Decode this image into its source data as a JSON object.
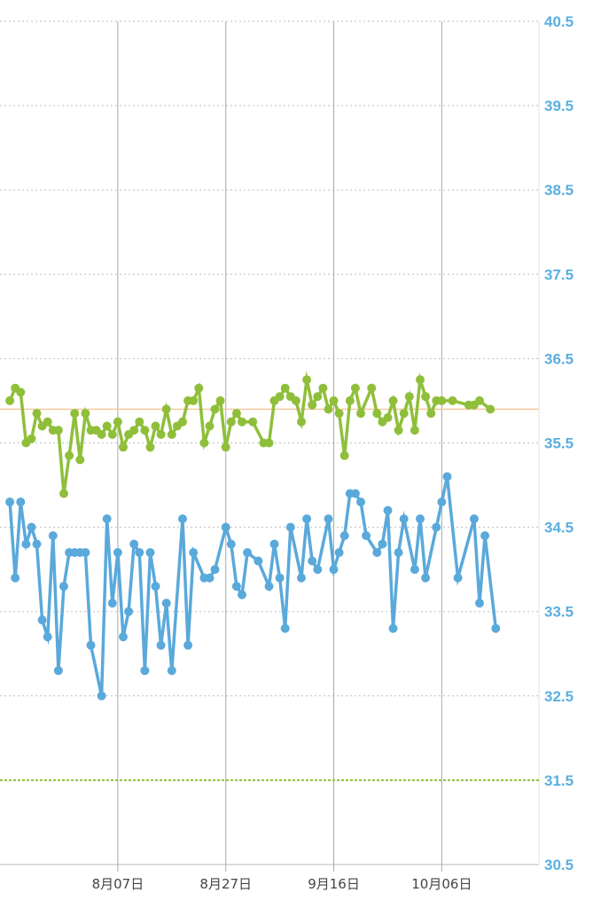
{
  "chart_data": {
    "type": "line",
    "title": "",
    "xlabel": "",
    "ylabel": "",
    "y_axis_position": "right",
    "ylim": [
      30.5,
      40.5
    ],
    "yticks": [
      "40.5",
      "39.5",
      "38.5",
      "37.5",
      "36.5",
      "35.5",
      "34.5",
      "33.5",
      "32.5",
      "31.5",
      "30.5"
    ],
    "xlim": [
      -21,
      78
    ],
    "xticks": [
      {
        "x": 0,
        "label": "8月07日"
      },
      {
        "x": 20,
        "label": "8月27日"
      },
      {
        "x": 40,
        "label": "9月16日"
      },
      {
        "x": 60,
        "label": "10月06日"
      }
    ],
    "grid": {
      "horizontal": "dotted",
      "vertical": "solid"
    },
    "reference_lines": [
      {
        "value": 35.9,
        "color": "#f2c9a0",
        "style": "solid"
      },
      {
        "value": 31.5,
        "color": "#8fbf3a",
        "style": "dashed"
      }
    ],
    "series": [
      {
        "color": "#8fbf3a",
        "points": [
          [
            -20,
            36.0
          ],
          [
            -19,
            36.15
          ],
          [
            -18,
            36.1
          ],
          [
            -17,
            35.5
          ],
          [
            -16,
            35.55
          ],
          [
            -15,
            35.85
          ],
          [
            -14,
            35.7
          ],
          [
            -13,
            35.75
          ],
          [
            -12,
            35.65
          ],
          [
            -11,
            35.65
          ],
          [
            -10,
            34.9
          ],
          [
            -9,
            35.35
          ],
          [
            -8,
            35.85
          ],
          [
            -7,
            35.3
          ],
          [
            -6,
            35.85
          ],
          [
            -5,
            35.65
          ],
          [
            -4,
            35.65
          ],
          [
            -3,
            35.6
          ],
          [
            -2,
            35.7
          ],
          [
            -1,
            35.6
          ],
          [
            0,
            35.75
          ],
          [
            1,
            35.45
          ],
          [
            2,
            35.6
          ],
          [
            3,
            35.65
          ],
          [
            4,
            35.75
          ],
          [
            5,
            35.65
          ],
          [
            6,
            35.45
          ],
          [
            7,
            35.7
          ],
          [
            8,
            35.6
          ],
          [
            9,
            35.9
          ],
          [
            10,
            35.6
          ],
          [
            11,
            35.7
          ],
          [
            12,
            35.75
          ],
          [
            13,
            36.0
          ],
          [
            14,
            36.0
          ],
          [
            15,
            36.15
          ],
          [
            16,
            35.5
          ],
          [
            17,
            35.7
          ],
          [
            18,
            35.9
          ],
          [
            19,
            36.0
          ],
          [
            20,
            35.45
          ],
          [
            21,
            35.75
          ],
          [
            22,
            35.85
          ],
          [
            23,
            35.75
          ],
          [
            25,
            35.75
          ],
          [
            27,
            35.5
          ],
          [
            28,
            35.5
          ],
          [
            29,
            36.0
          ],
          [
            30,
            36.05
          ],
          [
            31,
            36.15
          ],
          [
            32,
            36.05
          ],
          [
            33,
            36.0
          ],
          [
            34,
            35.75
          ],
          [
            35,
            36.25
          ],
          [
            36,
            35.95
          ],
          [
            37,
            36.05
          ],
          [
            38,
            36.15
          ],
          [
            39,
            35.9
          ],
          [
            40,
            36.0
          ],
          [
            41,
            35.85
          ],
          [
            42,
            35.35
          ],
          [
            43,
            36.0
          ],
          [
            44,
            36.15
          ],
          [
            45,
            35.85
          ],
          [
            47,
            36.15
          ],
          [
            48,
            35.85
          ],
          [
            49,
            35.75
          ],
          [
            50,
            35.8
          ],
          [
            51,
            36.0
          ],
          [
            52,
            35.65
          ],
          [
            53,
            35.85
          ],
          [
            54,
            36.05
          ],
          [
            55,
            35.65
          ],
          [
            56,
            36.25
          ],
          [
            57,
            36.05
          ],
          [
            58,
            35.85
          ],
          [
            59,
            36.0
          ],
          [
            60,
            36.0
          ],
          [
            62,
            36.0
          ],
          [
            65,
            35.95
          ],
          [
            66,
            35.95
          ],
          [
            67,
            36.0
          ],
          [
            69,
            35.9
          ]
        ]
      },
      {
        "color": "#5aa9db",
        "points": [
          [
            -20,
            34.8
          ],
          [
            -19,
            33.9
          ],
          [
            -18,
            34.8
          ],
          [
            -17,
            34.3
          ],
          [
            -16,
            34.5
          ],
          [
            -15,
            34.3
          ],
          [
            -14,
            33.4
          ],
          [
            -13,
            33.2
          ],
          [
            -12,
            34.4
          ],
          [
            -11,
            32.8
          ],
          [
            -10,
            33.8
          ],
          [
            -9,
            34.2
          ],
          [
            -8,
            34.2
          ],
          [
            -7,
            34.2
          ],
          [
            -6,
            34.2
          ],
          [
            -5,
            33.1
          ],
          [
            -3,
            32.5
          ],
          [
            -2,
            34.6
          ],
          [
            -1,
            33.6
          ],
          [
            0,
            34.2
          ],
          [
            1,
            33.2
          ],
          [
            2,
            33.5
          ],
          [
            3,
            34.3
          ],
          [
            4,
            34.2
          ],
          [
            5,
            32.8
          ],
          [
            6,
            34.2
          ],
          [
            7,
            33.8
          ],
          [
            8,
            33.1
          ],
          [
            9,
            33.6
          ],
          [
            10,
            32.8
          ],
          [
            12,
            34.6
          ],
          [
            13,
            33.1
          ],
          [
            14,
            34.2
          ],
          [
            16,
            33.9
          ],
          [
            17,
            33.9
          ],
          [
            18,
            34.0
          ],
          [
            20,
            34.5
          ],
          [
            21,
            34.3
          ],
          [
            22,
            33.8
          ],
          [
            23,
            33.7
          ],
          [
            24,
            34.2
          ],
          [
            26,
            34.1
          ],
          [
            28,
            33.8
          ],
          [
            29,
            34.3
          ],
          [
            30,
            33.9
          ],
          [
            31,
            33.3
          ],
          [
            32,
            34.5
          ],
          [
            34,
            33.9
          ],
          [
            35,
            34.6
          ],
          [
            36,
            34.1
          ],
          [
            37,
            34.0
          ],
          [
            39,
            34.6
          ],
          [
            40,
            34.0
          ],
          [
            41,
            34.2
          ],
          [
            42,
            34.4
          ],
          [
            43,
            34.9
          ],
          [
            44,
            34.9
          ],
          [
            45,
            34.8
          ],
          [
            46,
            34.4
          ],
          [
            48,
            34.2
          ],
          [
            49,
            34.3
          ],
          [
            50,
            34.7
          ],
          [
            51,
            33.3
          ],
          [
            52,
            34.2
          ],
          [
            53,
            34.6
          ],
          [
            55,
            34.0
          ],
          [
            56,
            34.6
          ],
          [
            57,
            33.9
          ],
          [
            59,
            34.5
          ],
          [
            60,
            34.8
          ],
          [
            61,
            35.1
          ],
          [
            63,
            33.9
          ],
          [
            66,
            34.6
          ],
          [
            67,
            33.6
          ],
          [
            68,
            34.4
          ],
          [
            70,
            33.3
          ]
        ]
      }
    ]
  }
}
